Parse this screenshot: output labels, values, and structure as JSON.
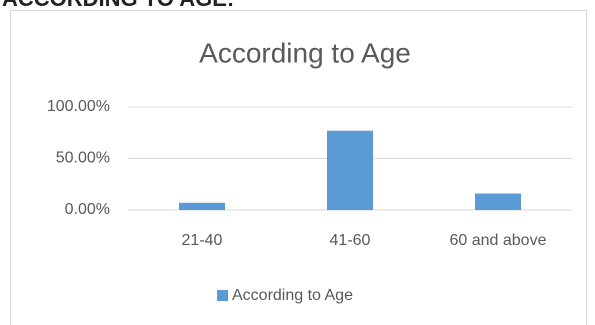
{
  "heading": "ACCORDING TO AGE:",
  "chart_data": {
    "type": "bar",
    "title": "According to Age",
    "categories": [
      "21-40",
      "41-60",
      "60 and above"
    ],
    "series": [
      {
        "name": "According to Age",
        "color": "#5b9bd5",
        "values": [
          7,
          77,
          16
        ]
      }
    ],
    "ylim": [
      0,
      100
    ],
    "yticks": [
      {
        "value": 0,
        "label": "0.00%"
      },
      {
        "value": 50,
        "label": "50.00%"
      },
      {
        "value": 100,
        "label": "100.00%"
      }
    ],
    "grid": true,
    "legend": "bottom"
  }
}
